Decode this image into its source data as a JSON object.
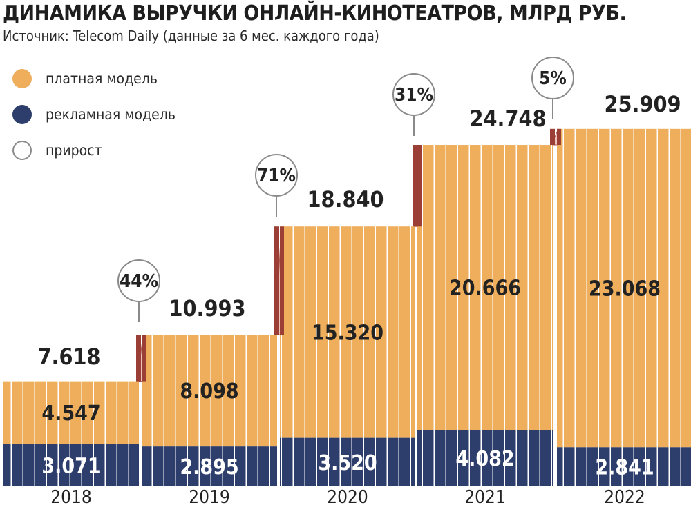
{
  "title": "ДИНАМИКА ВЫРУЧКИ ОНЛАЙН-КИНОТЕАТРОВ, МЛРД РУБ.",
  "subtitle": "Источник: Telecom Daily (данные за 6 мес. каждого года)",
  "colors": {
    "paid": "#eeae5c",
    "ad": "#2e3e6c",
    "growth_band": "#eec3bc",
    "growth_inner": "#e19062",
    "growth_edge": "#b25a4c",
    "step_bar": "#9b3e35"
  },
  "legend": [
    {
      "label": "платная модель",
      "color": "#eeae5c",
      "icon": "orange-circle"
    },
    {
      "label": "рекламная модель",
      "color": "#2e3e6c",
      "icon": "navy-circle"
    },
    {
      "label": "прирост",
      "color": "#ffffff",
      "icon": "outline-circle"
    }
  ],
  "chart_data": {
    "type": "bar",
    "stacked": true,
    "categories": [
      "2018",
      "2019",
      "2020",
      "2021",
      "2022"
    ],
    "series": [
      {
        "name": "рекламная модель",
        "values": [
          3.071,
          2.895,
          3.52,
          4.082,
          2.841
        ],
        "labels": [
          "3.071",
          "2.895",
          "3.520",
          "4.082",
          "2.841"
        ]
      },
      {
        "name": "платная модель",
        "values": [
          4.547,
          8.098,
          15.32,
          20.666,
          23.068
        ],
        "labels": [
          "4.547",
          "8.098",
          "15.320",
          "20.666",
          "23.068"
        ]
      }
    ],
    "totals": [
      7.618,
      10.993,
      18.84,
      24.748,
      25.909
    ],
    "total_labels": [
      "7.618",
      "10.993",
      "18.840",
      "24.748",
      "25.909"
    ],
    "growth": [
      {
        "between": [
          "2018",
          "2019"
        ],
        "label": "44%"
      },
      {
        "between": [
          "2019",
          "2020"
        ],
        "label": "71%"
      },
      {
        "between": [
          "2020",
          "2021"
        ],
        "label": "31%"
      },
      {
        "between": [
          "2021",
          "2022"
        ],
        "label": "5%"
      }
    ]
  }
}
